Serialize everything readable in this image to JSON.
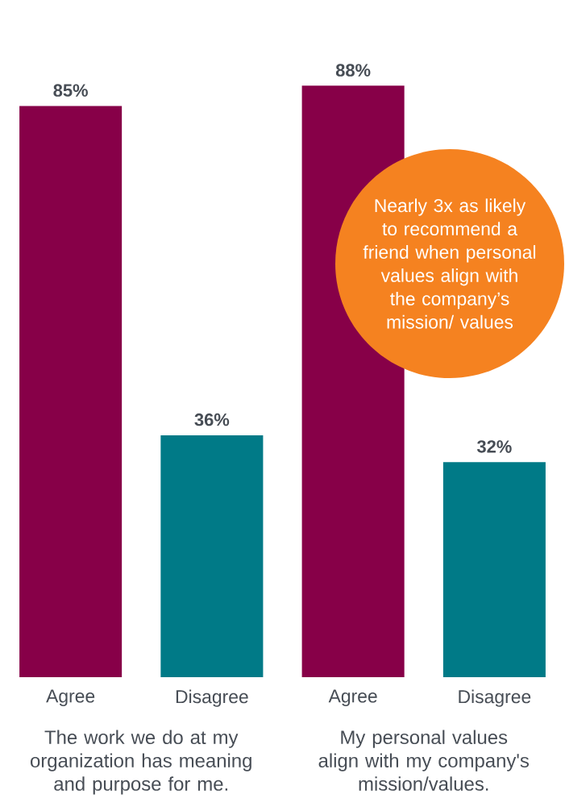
{
  "chart_data": {
    "type": "bar",
    "categories": [
      "Agree",
      "Disagree",
      "Agree",
      "Disagree"
    ],
    "values": [
      85,
      36,
      88,
      32
    ],
    "colors": [
      "#870048",
      "#007a87",
      "#870048",
      "#007a87"
    ],
    "value_labels": [
      "85%",
      "36%",
      "88%",
      "32%"
    ],
    "annotations": [
      "The work we do at my organization has meaning and purpose for me.",
      "My personal values align with my company's mission/values.",
      "Nearly 3x as likely to recommend a friend when personal values align with the company’s mission/ values"
    ]
  }
}
